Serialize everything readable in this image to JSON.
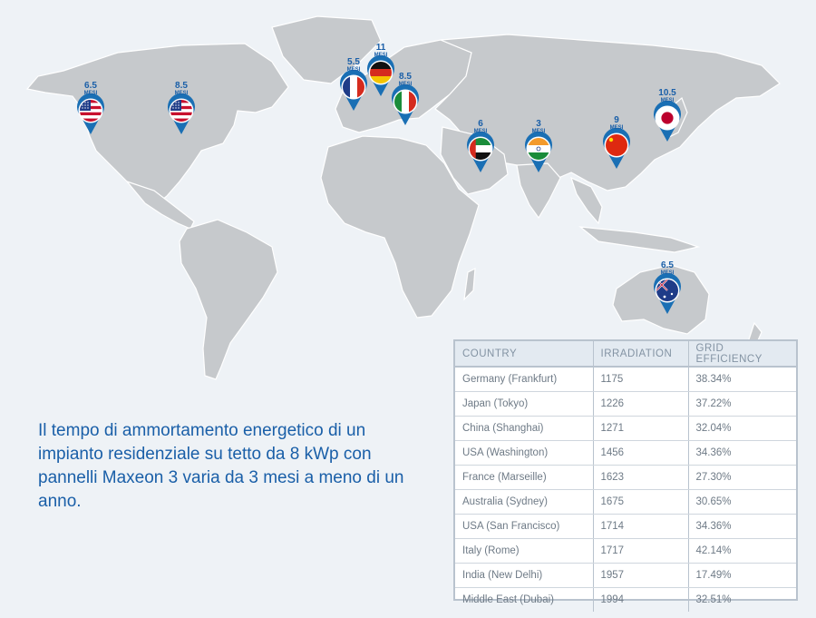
{
  "caption": "Il tempo di ammortamento energetico di un impianto residenziale su tetto da 8 kWp con pannelli Maxeon 3 varia da 3 mesi a meno di un anno.",
  "unit": "MESI",
  "pins": [
    {
      "id": "usa-sf",
      "flag": "usa",
      "value": "6.5"
    },
    {
      "id": "usa-dc",
      "flag": "usa",
      "value": "8.5"
    },
    {
      "id": "france",
      "flag": "france",
      "value": "5.5"
    },
    {
      "id": "germany",
      "flag": "germany",
      "value": "11"
    },
    {
      "id": "italy",
      "flag": "italy",
      "value": "8.5"
    },
    {
      "id": "uae",
      "flag": "uae",
      "value": "6"
    },
    {
      "id": "india",
      "flag": "india",
      "value": "3"
    },
    {
      "id": "china",
      "flag": "china",
      "value": "9"
    },
    {
      "id": "japan",
      "flag": "japan",
      "value": "10.5"
    },
    {
      "id": "australia",
      "flag": "australia",
      "value": "6.5"
    }
  ],
  "table": {
    "headers": [
      "COUNTRY",
      "IRRADIATION",
      "GRID EFFICIENCY"
    ],
    "rows": [
      [
        "Germany (Frankfurt)",
        "1175",
        "38.34%"
      ],
      [
        "Japan (Tokyo)",
        "1226",
        "37.22%"
      ],
      [
        "China (Shanghai)",
        "1271",
        "32.04%"
      ],
      [
        "USA (Washington)",
        "1456",
        "34.36%"
      ],
      [
        "France (Marseille)",
        "1623",
        "27.30%"
      ],
      [
        "Australia (Sydney)",
        "1675",
        "30.65%"
      ],
      [
        "USA (San Francisco)",
        "1714",
        "34.36%"
      ],
      [
        "Italy (Rome)",
        "1717",
        "42.14%"
      ],
      [
        "India (New Delhi)",
        "1957",
        "17.49%"
      ],
      [
        "Middle East (Dubai)",
        "1994",
        "32.51%"
      ]
    ]
  },
  "colors": {
    "accent": "#1a5fa8",
    "land": "#c6c9cc",
    "background": "#eef2f6",
    "pin": "#1a6fb4"
  }
}
